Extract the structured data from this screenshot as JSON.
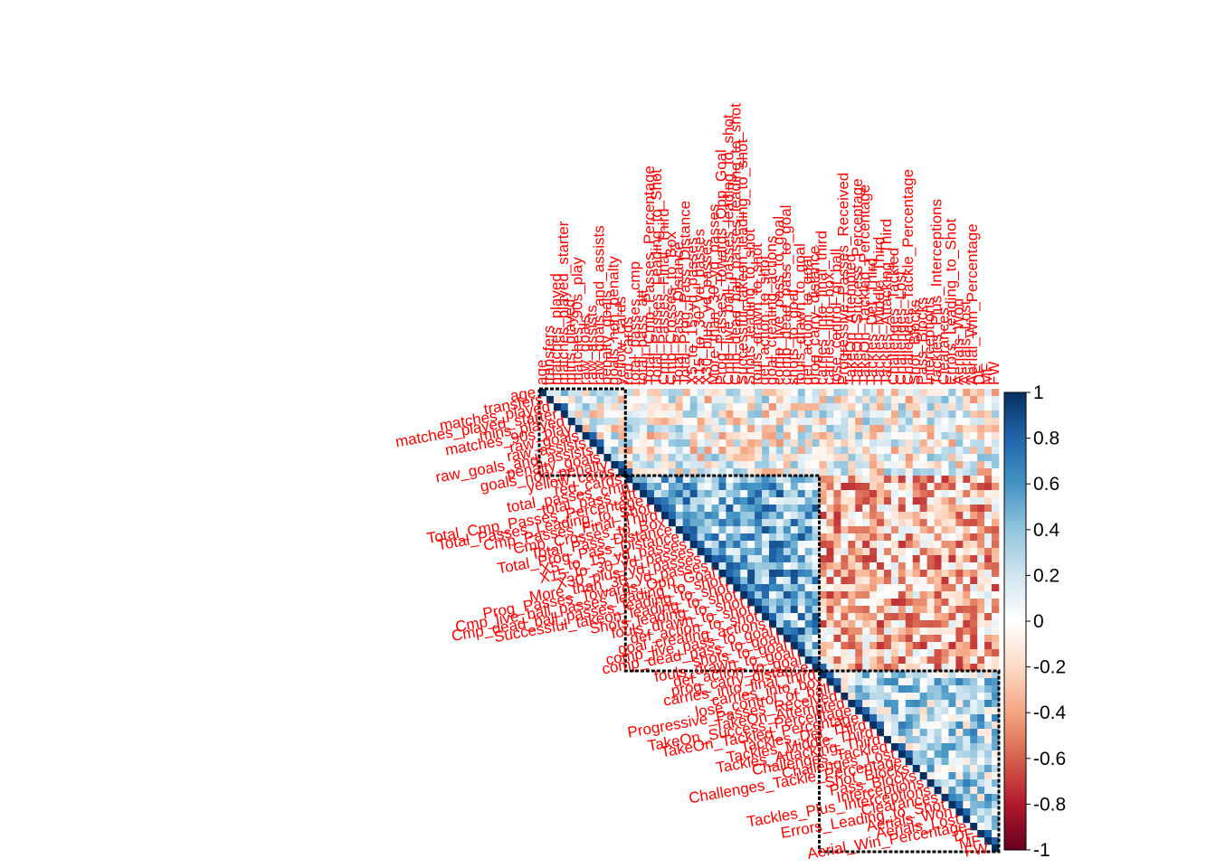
{
  "chart_data": {
    "type": "heatmap",
    "subtype": "correlation-upper-triangle",
    "variables": [
      "age",
      "transfers",
      "matches_played",
      "matches_played_starter",
      "mins_played",
      "matches_90s_play",
      "raw_goals",
      "raw_assists",
      "raw_goals_and_assists",
      "penalty_goals",
      "goals_non_penalty",
      "yellow_cards",
      "red_cards",
      "total_passes_cmp",
      "total_pass_att",
      "Total_Cmp_Passes_Percentage",
      "Total_Passes_Leading_to_Shot",
      "Cmp_Passes_Final_Third",
      "Cmp_Crosses_to_Box",
      "Total_Pass_Distance",
      "Total_Prog_Pass_Distance",
      "X5_to_15_yd_passes",
      "X15_to_30_yd_passes",
      "X30_plus_yd_passes",
      "More_than_30_yd_passes",
      "Prog_Passes_Towards_Opp_Goal",
      "Cmp_live_ball_passes_leading_to_shot",
      "Cmp_dead_ball_passes_leading_to_shot",
      "Successful_takeon_leading_to_shot",
      "Shots_leading_to_shot",
      "fouls_drawn_to_shot",
      "def_action_to_shot",
      "goal_creating_actions",
      "comp_live_pass_to_goal",
      "comp_dead_pass_to_goal",
      "shots_to_goal",
      "fouls_drawn_to_goal",
      "def_action_to_goal",
      "prog_carry_distance",
      "carries_into_final_third",
      "carries_into_box",
      "lose_control_of_ball",
      "Progressive_Passes_Received",
      "TakeOn_Attempted",
      "TakeOn_Success_Percentage",
      "TakeOn_Tackled_Percentage",
      "Tackles_Def_Third",
      "Tackles_Middle_Third",
      "Tackles_Attacking_Third",
      "Challenges_Tackled",
      "Challenges_Lost",
      "Challenges_Tackle_Percentage",
      "Shot_Blocks",
      "Pass_Blocks",
      "Interceptions",
      "Tackles_Plus_Interceptions",
      "Clearances",
      "Errors_Leading_to_Shot",
      "Aerials_Won",
      "Aerials_Lost",
      "Aerial_Win_Percentage",
      "DF",
      "MF",
      "FW"
    ],
    "row_label_overlaps": [
      "age",
      "transfers",
      "matches_played",
      "matches_played_starter",
      "matches_90s_play",
      "raw_goals",
      "raw_assists",
      "raw_goals_and_assists",
      "total_passes_cmp",
      "Total_Cmp_Passes_Percentage",
      "Total_Passes_Leading_to_Shot",
      "Cmp_Crosses_to_Box",
      "Total_Pass_Distance",
      "X5_to_15_yd_passes",
      "X15_to_30_yd_passes",
      "X30_plus_yd_passes",
      "More_than_30_yd_passes",
      "Cmp_live_ball_passes_leading_to_shot",
      "Cmp_dead_ball_passes_leading_to_shot",
      "Successful_takeon_leading_to_shot",
      "Shots_leading_to_shot",
      "fouls_drawn_to_shot",
      "goal_creating_actions",
      "comp_dead_pass_to_goal",
      "fouls_drawn_to_goal",
      "def_action_to_goal",
      "prog_carry_distance",
      "carries_into_final_third",
      "lose_control_of_ball",
      "Progressive_Passes_Received",
      "TakeOn_Success_Percentage",
      "TakeOn_Tackled_Percentage",
      "Tackles_Def_Third",
      "Tackles_Middle_Third",
      "Challenges_Tackled",
      "Challenges_Tackle_Percentage",
      "Tackles_Plus_Interceptions",
      "Errors_Leading_to_Shot",
      "Aerials_Won",
      "Aerial_Win_Percentage",
      "FW"
    ],
    "legend": {
      "ticks": [
        "1",
        "0.8",
        "0.6",
        "0.4",
        "0.2",
        "0",
        "-0.2",
        "-0.4",
        "-0.6",
        "-0.8",
        "-1"
      ],
      "colors": [
        "#053061",
        "#2166AC",
        "#4393C3",
        "#92C5DE",
        "#D1E5F0",
        "#FFFFFF",
        "#FDDBC7",
        "#F4A582",
        "#D6604D",
        "#B2182B",
        "#67001F"
      ],
      "position": "right"
    },
    "color_scale": {
      "min": -1,
      "max": 1,
      "diverging": true,
      "negative": "red",
      "positive": "blue"
    },
    "clusters": {
      "count": 3,
      "boundaries_after_variable_index": [
        11,
        38
      ]
    },
    "label_color": "#FF0000",
    "diagonal_value": 1,
    "grid": false,
    "title": "",
    "xlabel": "",
    "ylabel": ""
  }
}
